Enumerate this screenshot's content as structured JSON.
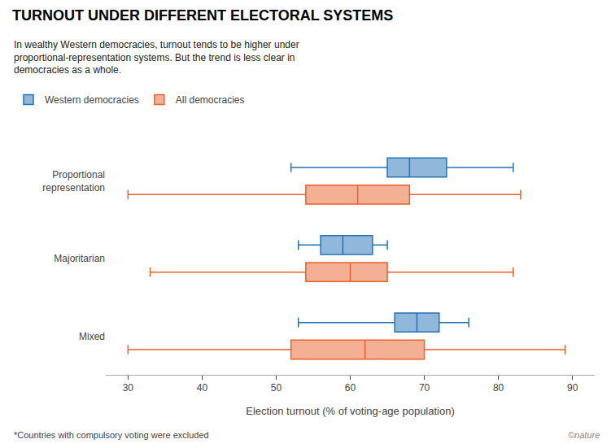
{
  "chart_data": {
    "type": "box",
    "orientation": "horizontal",
    "title": "TURNOUT UNDER DIFFERENT ELECTORAL SYSTEMS",
    "subtitle": "In wealthy Western democracies, turnout tends to be higher under\nproportional-representation systems. But the trend is less clear in\ndemocracies as a whole.",
    "xlabel": "Election turnout (% of voting-age population)",
    "annotations": [
      "*Countries with compulsory voting were excluded",
      "©nature"
    ],
    "categories": [
      "Proportional\nrepresentation",
      "Majoritarian",
      "Mixed"
    ],
    "series": [
      {
        "name": "Western democracies",
        "color": "#2272b5",
        "lowerfence": [
          52,
          53,
          53
        ],
        "q1": [
          65,
          56,
          66
        ],
        "median": [
          68,
          59,
          69
        ],
        "q3": [
          73,
          63,
          72
        ],
        "upperfence": [
          82,
          65,
          76
        ]
      },
      {
        "name": "All democracies",
        "color": "#e8622a",
        "lowerfence": [
          30,
          33,
          30
        ],
        "q1": [
          54,
          54,
          52
        ],
        "median": [
          61,
          60,
          62
        ],
        "q3": [
          68,
          65,
          70
        ],
        "upperfence": [
          83,
          82,
          89
        ]
      }
    ],
    "xlim": [
      27,
      93
    ],
    "xticks": [
      30,
      40,
      50,
      60,
      70,
      80,
      90
    ],
    "grid": false,
    "legend": "top left"
  }
}
